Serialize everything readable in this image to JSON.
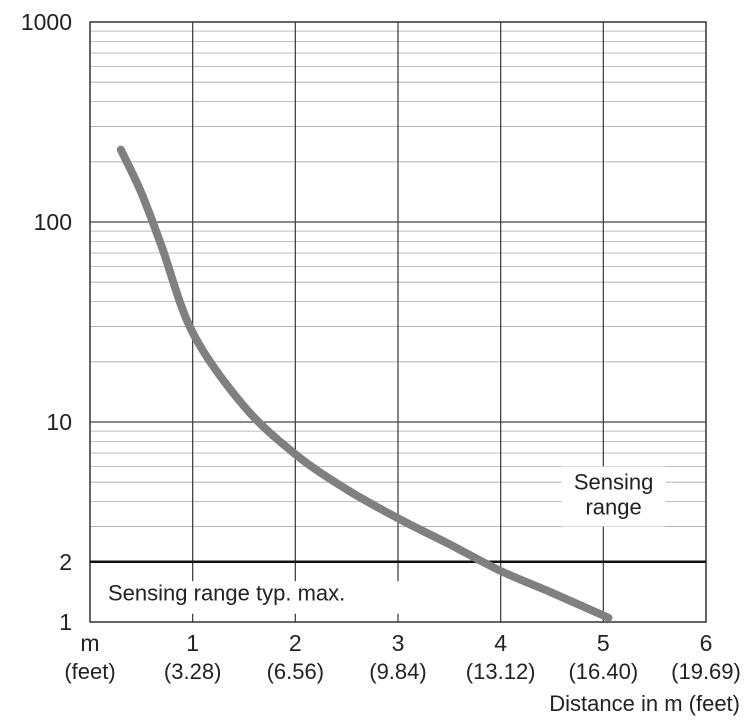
{
  "chart_data": {
    "type": "line",
    "xlabel": "Distance in m (feet)",
    "x_unit_labels": [
      "m",
      "(feet)"
    ],
    "xlim": [
      0,
      6
    ],
    "ylim": [
      1,
      1000
    ],
    "y_scale": "log",
    "x_ticks": [
      {
        "value": 1,
        "m": "1",
        "feet": "(3.28)"
      },
      {
        "value": 2,
        "m": "2",
        "feet": "(6.56)"
      },
      {
        "value": 3,
        "m": "3",
        "feet": "(9.84)"
      },
      {
        "value": 4,
        "m": "4",
        "feet": "(13.12)"
      },
      {
        "value": 5,
        "m": "5",
        "feet": "(16.40)"
      },
      {
        "value": 6,
        "m": "6",
        "feet": "(19.69)"
      }
    ],
    "y_ticks": [
      {
        "value": 1,
        "label": "1"
      },
      {
        "value": 2,
        "label": "2"
      },
      {
        "value": 10,
        "label": "10"
      },
      {
        "value": 100,
        "label": "100"
      },
      {
        "value": 1000,
        "label": "1000"
      }
    ],
    "grid": true,
    "series": [
      {
        "color": "#808080",
        "x": [
          0.3,
          0.5,
          0.7,
          1.0,
          1.5,
          2.0,
          2.5,
          3.0,
          3.5,
          4.0,
          4.5,
          5.05
        ],
        "y": [
          230,
          140,
          75,
          28,
          12,
          6.9,
          4.6,
          3.3,
          2.45,
          1.8,
          1.4,
          1.05
        ]
      }
    ],
    "reference_line": {
      "y": 2,
      "color": "#111111"
    },
    "annotations": {
      "sensing_range_line1": "Sensing",
      "sensing_range_line2": "range",
      "typ_max": "Sensing range typ. max."
    }
  }
}
